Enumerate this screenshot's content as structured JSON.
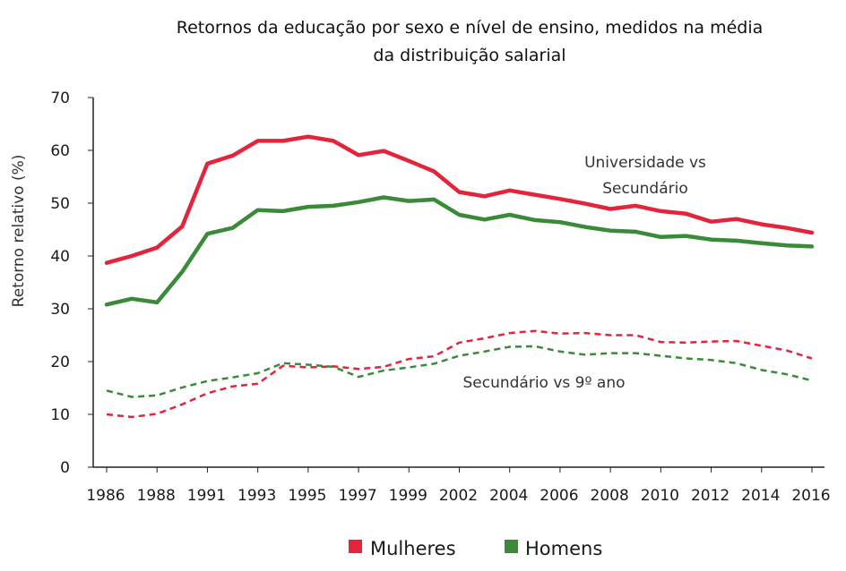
{
  "chart_data": {
    "type": "line",
    "title_line1": "Retornos da educação por sexo e nível de ensino, medidos na média",
    "title_line2": "da distribuição salarial",
    "ylabel": "Retorno relativo (%)",
    "ylim": [
      0,
      70
    ],
    "yticks": [
      "0",
      "10",
      "20",
      "30",
      "40",
      "50",
      "60",
      "70"
    ],
    "x_ticks": [
      "1986",
      "1988",
      "1991",
      "1993",
      "1995",
      "1997",
      "1999",
      "2002",
      "2004",
      "2006",
      "2008",
      "2010",
      "2012",
      "2014",
      "2016"
    ],
    "x_tick_index": [
      0,
      2,
      4,
      6,
      8,
      10,
      12,
      14,
      16,
      18,
      20,
      22,
      24,
      26,
      28
    ],
    "n_points": 29,
    "series": [
      {
        "group": "Universidade vs Secundário",
        "sex": "Mulheres",
        "style": "solid",
        "color": "#e3243b",
        "values": [
          38.7,
          40.0,
          41.6,
          45.6,
          57.5,
          59.0,
          61.8,
          61.8,
          62.6,
          61.8,
          59.1,
          59.9,
          58.0,
          56.0,
          52.1,
          51.3,
          52.4,
          51.6,
          50.8,
          49.9,
          48.9,
          49.5,
          48.5,
          48.0,
          46.5,
          47.0,
          46.0,
          45.3,
          44.4
        ]
      },
      {
        "group": "Universidade vs Secundário",
        "sex": "Homens",
        "style": "solid",
        "color": "#3a8a3a",
        "values": [
          30.8,
          31.9,
          31.2,
          37.0,
          44.2,
          45.3,
          48.7,
          48.5,
          49.3,
          49.5,
          50.2,
          51.1,
          50.4,
          50.7,
          47.8,
          46.9,
          47.8,
          46.8,
          46.4,
          45.5,
          44.8,
          44.6,
          43.6,
          43.8,
          43.1,
          42.9,
          42.4,
          42.0,
          41.8
        ]
      },
      {
        "group": "Secundário vs 9º ano",
        "sex": "Mulheres",
        "style": "dashed",
        "color": "#e3243b",
        "values": [
          10.0,
          9.5,
          10.1,
          11.9,
          14.0,
          15.3,
          15.8,
          19.2,
          18.9,
          19.1,
          18.6,
          19.0,
          20.5,
          21.0,
          23.6,
          24.4,
          25.4,
          25.8,
          25.3,
          25.4,
          25.0,
          25.0,
          23.7,
          23.6,
          23.8,
          23.9,
          23.0,
          22.1,
          20.6
        ]
      },
      {
        "group": "Secundário vs 9º ano",
        "sex": "Homens",
        "style": "dashed",
        "color": "#3a8a3a",
        "values": [
          14.5,
          13.3,
          13.6,
          15.1,
          16.3,
          17.0,
          17.8,
          19.7,
          19.4,
          19.0,
          17.1,
          18.3,
          18.9,
          19.6,
          21.1,
          21.9,
          22.8,
          22.9,
          21.9,
          21.3,
          21.6,
          21.6,
          21.1,
          20.6,
          20.3,
          19.7,
          18.4,
          17.6,
          16.4
        ]
      }
    ],
    "annotations": [
      {
        "line1": "Universidade vs",
        "line2": "Secundário"
      },
      {
        "line1": "Secundário vs 9º ano"
      }
    ],
    "legend": [
      {
        "label": "Mulheres",
        "color": "#e3243b"
      },
      {
        "label": "Homens",
        "color": "#3a8a3a"
      }
    ],
    "legend_position": "bottom-center",
    "grid": false
  }
}
